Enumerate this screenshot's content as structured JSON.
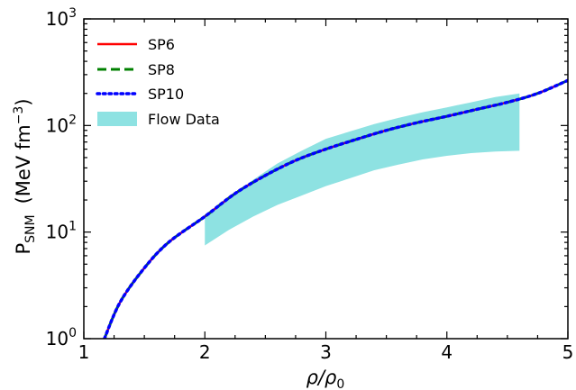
{
  "chart_data": {
    "type": "line",
    "xscale": "linear",
    "yscale": "log",
    "xlim": [
      1,
      5
    ],
    "ylim": [
      1,
      1000
    ],
    "xticks": [
      1,
      2,
      3,
      4,
      5
    ],
    "xtick_labels": [
      "1",
      "2",
      "3",
      "4",
      "5"
    ],
    "yticks": [
      1,
      10,
      100,
      1000
    ],
    "ytick_labels": [
      {
        "base": "10",
        "exp": "0"
      },
      {
        "base": "10",
        "exp": "1"
      },
      {
        "base": "10",
        "exp": "2"
      },
      {
        "base": "10",
        "exp": "3"
      }
    ],
    "xlabel": {
      "main": "ρ/ρ",
      "sub": "0"
    },
    "ylabel": {
      "main": "P",
      "sub": "SNM",
      "unit_pre": "(MeV fm",
      "unit_exp": "−3",
      "unit_post": ")"
    },
    "grid": false,
    "legend": {
      "position": "top-left",
      "entries": [
        "SP6",
        "SP8",
        "SP10",
        "Flow Data"
      ]
    },
    "x": [
      1.17,
      1.3,
      1.5,
      1.7,
      2.0,
      2.25,
      2.5,
      2.75,
      3.0,
      3.25,
      3.5,
      3.75,
      4.0,
      4.25,
      4.5,
      4.75,
      5.0
    ],
    "series": [
      {
        "name": "SP6",
        "color": "#ff0000",
        "style": "solid",
        "values": [
          1.0,
          2.2,
          4.6,
          8.0,
          14.0,
          23.0,
          34.0,
          47.0,
          60.0,
          74.0,
          90.0,
          106.0,
          122.0,
          142.0,
          165.0,
          200.0,
          265.0
        ]
      },
      {
        "name": "SP8",
        "color": "#008000",
        "style": "dashed",
        "values": [
          1.0,
          2.2,
          4.6,
          8.0,
          14.0,
          23.0,
          34.0,
          47.0,
          60.0,
          74.0,
          90.0,
          106.0,
          122.0,
          142.0,
          165.0,
          200.0,
          265.0
        ]
      },
      {
        "name": "SP10",
        "color": "#0000ff",
        "style": "dotted",
        "values": [
          1.0,
          2.2,
          4.6,
          8.0,
          14.0,
          23.0,
          34.0,
          47.0,
          60.0,
          74.0,
          90.0,
          106.0,
          122.0,
          142.0,
          165.0,
          200.0,
          265.0
        ]
      }
    ],
    "band": {
      "name": "Flow Data",
      "color": "#8ee2e2",
      "x": [
        2.0,
        2.2,
        2.4,
        2.6,
        2.8,
        3.0,
        3.2,
        3.4,
        3.6,
        3.8,
        4.0,
        4.2,
        4.4,
        4.6
      ],
      "upper": [
        14.0,
        21.0,
        31.0,
        44.0,
        58.0,
        75.0,
        88.0,
        103.0,
        118.0,
        133.0,
        148.0,
        165.0,
        185.0,
        200.0
      ],
      "lower": [
        7.5,
        10.5,
        14.0,
        18.0,
        22.0,
        27.0,
        32.0,
        38.0,
        43.0,
        48.0,
        52.0,
        55.0,
        57.0,
        58.0
      ]
    }
  }
}
